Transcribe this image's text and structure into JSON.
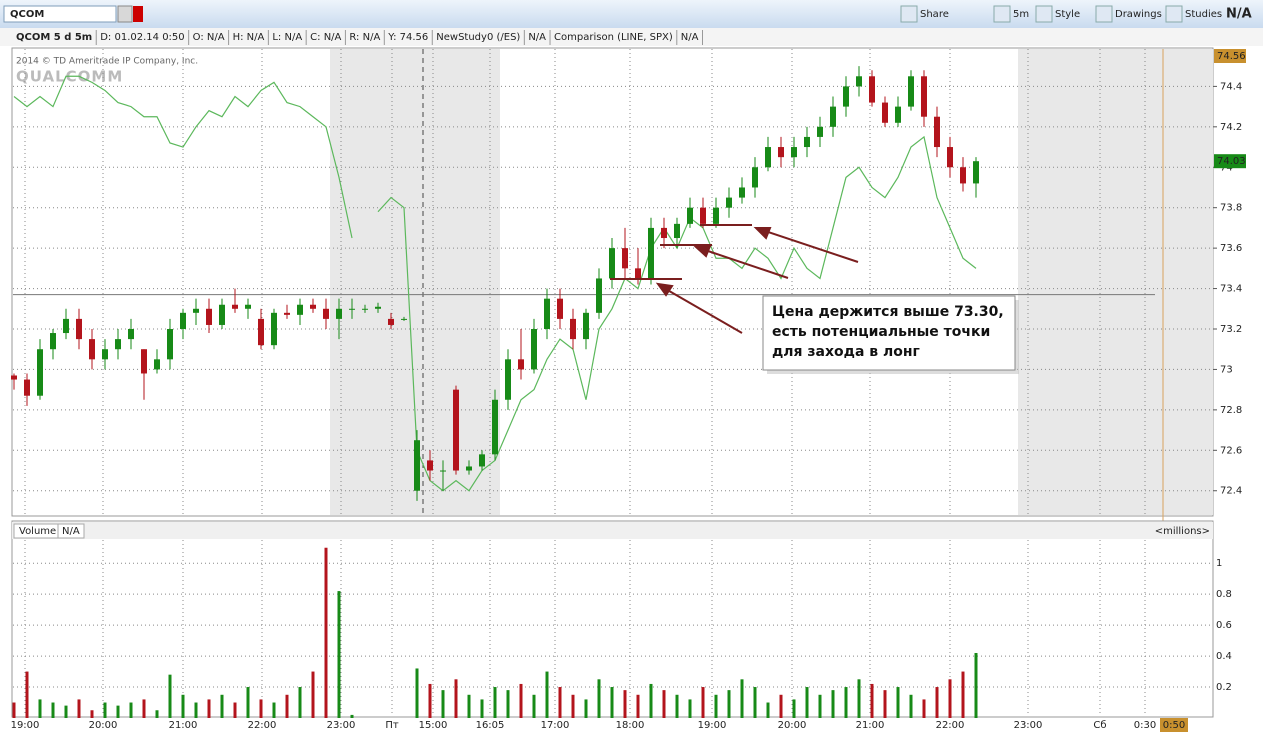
{
  "toolbar": {
    "symbol": "QCOM",
    "buttons": [
      "Share",
      "5m",
      "Style",
      "Drawings",
      "Studies"
    ],
    "last": "N/A"
  },
  "info_bar": [
    "QCOM 5 d 5m",
    "D: 01.02.14 0:50",
    "O: N/A",
    "H: N/A",
    "L: N/A",
    "C: N/A",
    "R: N/A",
    "Y: 74.56",
    "NewStudy0 (/ES)",
    "N/A",
    "Comparison (LINE, SPX)",
    "N/A"
  ],
  "watermark": {
    "copyright": "2014 © TD Ameritrade IP Company, Inc.",
    "logo": "QUALCOMM"
  },
  "chart": {
    "type": "candlestick",
    "candles": [
      [
        72.97,
        72.98,
        72.9,
        72.95
      ],
      [
        72.95,
        72.98,
        72.82,
        72.87
      ],
      [
        72.87,
        73.15,
        72.85,
        73.1
      ],
      [
        73.1,
        73.2,
        73.05,
        73.18
      ],
      [
        73.18,
        73.3,
        73.15,
        73.25
      ],
      [
        73.25,
        73.3,
        73.1,
        73.15
      ],
      [
        73.15,
        73.2,
        73.0,
        73.05
      ],
      [
        73.05,
        73.15,
        73.0,
        73.1
      ],
      [
        73.1,
        73.2,
        73.05,
        73.15
      ],
      [
        73.15,
        73.25,
        73.1,
        73.2
      ],
      [
        73.1,
        73.1,
        72.85,
        72.98
      ],
      [
        73.0,
        73.1,
        72.98,
        73.05
      ],
      [
        73.05,
        73.25,
        73.0,
        73.2
      ],
      [
        73.2,
        73.3,
        73.15,
        73.28
      ],
      [
        73.28,
        73.35,
        73.22,
        73.3
      ],
      [
        73.3,
        73.35,
        73.18,
        73.22
      ],
      [
        73.22,
        73.35,
        73.2,
        73.32
      ],
      [
        73.32,
        73.4,
        73.28,
        73.3
      ],
      [
        73.3,
        73.35,
        73.25,
        73.32
      ],
      [
        73.25,
        73.3,
        73.1,
        73.12
      ],
      [
        73.12,
        73.3,
        73.1,
        73.28
      ],
      [
        73.28,
        73.32,
        73.25,
        73.27
      ],
      [
        73.27,
        73.35,
        73.22,
        73.32
      ],
      [
        73.32,
        73.35,
        73.28,
        73.3
      ],
      [
        73.3,
        73.35,
        73.2,
        73.25
      ],
      [
        73.25,
        73.35,
        73.15,
        73.3
      ],
      [
        73.3,
        73.35,
        73.25,
        73.3
      ],
      [
        73.3,
        73.32,
        73.28,
        73.3
      ],
      [
        73.3,
        73.33,
        73.28,
        73.31
      ],
      [
        73.25,
        73.28,
        73.2,
        73.22
      ],
      [
        73.25,
        73.26,
        73.24,
        73.25
      ],
      [
        72.4,
        72.7,
        72.35,
        72.65
      ],
      [
        72.55,
        72.6,
        72.45,
        72.5
      ],
      [
        72.5,
        72.55,
        72.4,
        72.5
      ],
      [
        72.9,
        72.92,
        72.48,
        72.5
      ],
      [
        72.5,
        72.55,
        72.48,
        72.52
      ],
      [
        72.52,
        72.6,
        72.5,
        72.58
      ],
      [
        72.58,
        72.9,
        72.55,
        72.85
      ],
      [
        72.85,
        73.1,
        72.8,
        73.05
      ],
      [
        73.05,
        73.2,
        72.95,
        73.0
      ],
      [
        73.0,
        73.25,
        72.98,
        73.2
      ],
      [
        73.2,
        73.4,
        73.15,
        73.35
      ],
      [
        73.35,
        73.4,
        73.2,
        73.25
      ],
      [
        73.25,
        73.3,
        73.1,
        73.15
      ],
      [
        73.15,
        73.3,
        73.1,
        73.28
      ],
      [
        73.28,
        73.5,
        73.25,
        73.45
      ],
      [
        73.45,
        73.65,
        73.4,
        73.6
      ],
      [
        73.6,
        73.7,
        73.45,
        73.5
      ],
      [
        73.5,
        73.6,
        73.42,
        73.45
      ],
      [
        73.45,
        73.75,
        73.42,
        73.7
      ],
      [
        73.7,
        73.75,
        73.6,
        73.65
      ],
      [
        73.65,
        73.75,
        73.6,
        73.72
      ],
      [
        73.72,
        73.85,
        73.7,
        73.8
      ],
      [
        73.8,
        73.85,
        73.7,
        73.72
      ],
      [
        73.72,
        73.85,
        73.7,
        73.8
      ],
      [
        73.8,
        73.9,
        73.75,
        73.85
      ],
      [
        73.85,
        73.95,
        73.82,
        73.9
      ],
      [
        73.9,
        74.05,
        73.85,
        74.0
      ],
      [
        74.0,
        74.15,
        73.98,
        74.1
      ],
      [
        74.1,
        74.15,
        74.0,
        74.05
      ],
      [
        74.05,
        74.15,
        74.0,
        74.1
      ],
      [
        74.1,
        74.2,
        74.05,
        74.15
      ],
      [
        74.15,
        74.25,
        74.1,
        74.2
      ],
      [
        74.2,
        74.35,
        74.15,
        74.3
      ],
      [
        74.3,
        74.45,
        74.25,
        74.4
      ],
      [
        74.4,
        74.5,
        74.35,
        74.45
      ],
      [
        74.45,
        74.48,
        74.3,
        74.32
      ],
      [
        74.32,
        74.35,
        74.2,
        74.22
      ],
      [
        74.22,
        74.35,
        74.2,
        74.3
      ],
      [
        74.3,
        74.48,
        74.28,
        74.45
      ],
      [
        74.45,
        74.48,
        74.2,
        74.25
      ],
      [
        74.25,
        74.3,
        74.05,
        74.1
      ],
      [
        74.1,
        74.15,
        73.95,
        74.0
      ],
      [
        74.0,
        74.05,
        73.88,
        73.92
      ],
      [
        73.92,
        74.05,
        73.85,
        74.03
      ]
    ],
    "comparison": [
      74.35,
      74.3,
      74.35,
      74.3,
      74.45,
      74.45,
      74.42,
      74.38,
      74.32,
      74.3,
      74.25,
      74.25,
      74.12,
      74.1,
      74.2,
      74.28,
      74.25,
      74.35,
      74.3,
      74.38,
      74.42,
      74.32,
      74.3,
      74.25,
      74.2,
      73.95,
      73.65,
      null,
      73.78,
      73.85,
      73.8,
      72.6,
      72.45,
      72.4,
      72.45,
      72.4,
      72.5,
      72.55,
      72.7,
      72.85,
      72.9,
      73.05,
      73.15,
      73.1,
      72.85,
      73.2,
      73.3,
      73.45,
      73.4,
      73.6,
      73.7,
      73.6,
      73.75,
      73.7,
      73.55,
      73.55,
      73.5,
      73.6,
      73.55,
      73.45,
      73.6,
      73.5,
      73.45,
      73.7,
      73.95,
      74.0,
      73.9,
      73.85,
      73.95,
      74.1,
      74.15,
      73.85,
      73.7,
      73.55,
      73.5
    ],
    "ylim": [
      72.28,
      74.58
    ],
    "yticks": [
      72.4,
      72.6,
      72.8,
      73,
      73.2,
      73.4,
      73.6,
      73.8,
      74,
      74.2,
      74.4
    ],
    "last_price": 74.03,
    "top_label": 74.56,
    "reference_line": 73.37,
    "time_labels": [
      "19:00",
      "20:00",
      "21:00",
      "22:00",
      "23:00",
      "Пт",
      "15:00",
      "16:05",
      "17:00",
      "18:00",
      "19:00",
      "20:00",
      "21:00",
      "22:00",
      "23:00",
      "Сб",
      "0:30"
    ],
    "annotation": [
      "Цена держится выше 73.30,",
      "есть потенциальные точки",
      "для захода в лонг"
    ],
    "up_color": "#178a17",
    "down_color": "#b3141c",
    "comparison_color": "#5cb85c"
  },
  "volume": {
    "title": "Volume",
    "value": "N/A",
    "unit": "<millions>",
    "values": [
      0.1,
      0.3,
      0.12,
      0.1,
      0.08,
      0.12,
      0.05,
      0.1,
      0.08,
      0.1,
      0.12,
      0.05,
      0.28,
      0.15,
      0.1,
      0.12,
      0.15,
      0.1,
      0.2,
      0.12,
      0.1,
      0.15,
      0.2,
      0.3,
      1.1,
      0.82,
      0.02,
      0.01,
      0.01,
      0.01,
      0.01,
      0.32,
      0.22,
      0.18,
      0.25,
      0.15,
      0.12,
      0.2,
      0.18,
      0.22,
      0.15,
      0.3,
      0.2,
      0.15,
      0.12,
      0.25,
      0.2,
      0.18,
      0.15,
      0.22,
      0.18,
      0.15,
      0.12,
      0.2,
      0.15,
      0.18,
      0.25,
      0.2,
      0.1,
      0.15,
      0.12,
      0.2,
      0.15,
      0.18,
      0.2,
      0.25,
      0.22,
      0.18,
      0.2,
      0.15,
      0.12,
      0.2,
      0.25,
      0.3,
      0.42
    ],
    "ylim": [
      0,
      1.15
    ],
    "yticks": [
      0.2,
      0.4,
      0.6,
      0.8,
      1
    ]
  },
  "cursor_time": "0:50"
}
